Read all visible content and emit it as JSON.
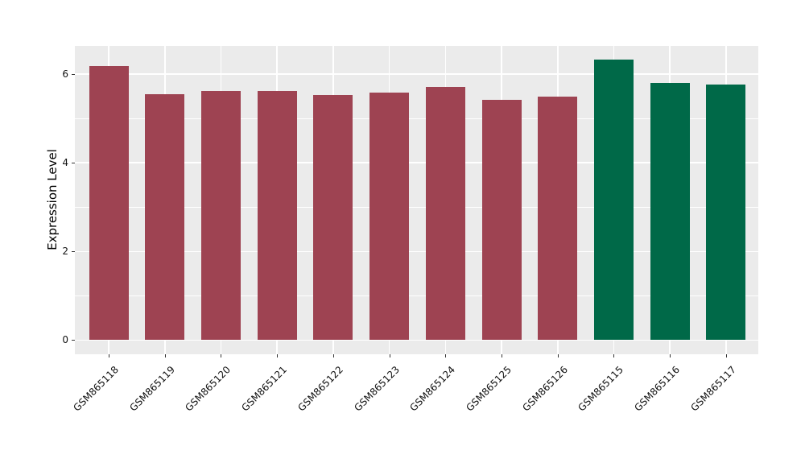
{
  "figure": {
    "background_color": "#ffffff",
    "y_axis_title": "Expression Level"
  },
  "chart_data": {
    "type": "bar",
    "title": "",
    "xlabel": "",
    "ylabel": "Expression Level",
    "categories": [
      "GSM865118",
      "GSM865119",
      "GSM865120",
      "GSM865121",
      "GSM865122",
      "GSM865123",
      "GSM865124",
      "GSM865125",
      "GSM865126",
      "GSM865115",
      "GSM865116",
      "GSM865117"
    ],
    "values": [
      6.19,
      5.55,
      5.62,
      5.62,
      5.54,
      5.59,
      5.72,
      5.42,
      5.5,
      6.34,
      5.81,
      5.77
    ],
    "bar_groups": [
      "red",
      "red",
      "red",
      "red",
      "red",
      "red",
      "red",
      "red",
      "red",
      "green",
      "green",
      "green"
    ],
    "palette": {
      "red": "#9E4352",
      "green": "#006948"
    },
    "yticks": [
      0,
      2,
      4,
      6
    ],
    "ytick_labels": [
      "0",
      "2",
      "4",
      "6"
    ],
    "minor_yticks": [
      1,
      3,
      5
    ],
    "ylim": [
      -0.32,
      6.64
    ],
    "x_tick_rotation_deg": 45,
    "panel_background": "#EBEBEB",
    "grid_color": "#FFFFFF",
    "tick_color": "#333333",
    "text_color": "#111111",
    "grid": true,
    "legend_position": "none"
  }
}
